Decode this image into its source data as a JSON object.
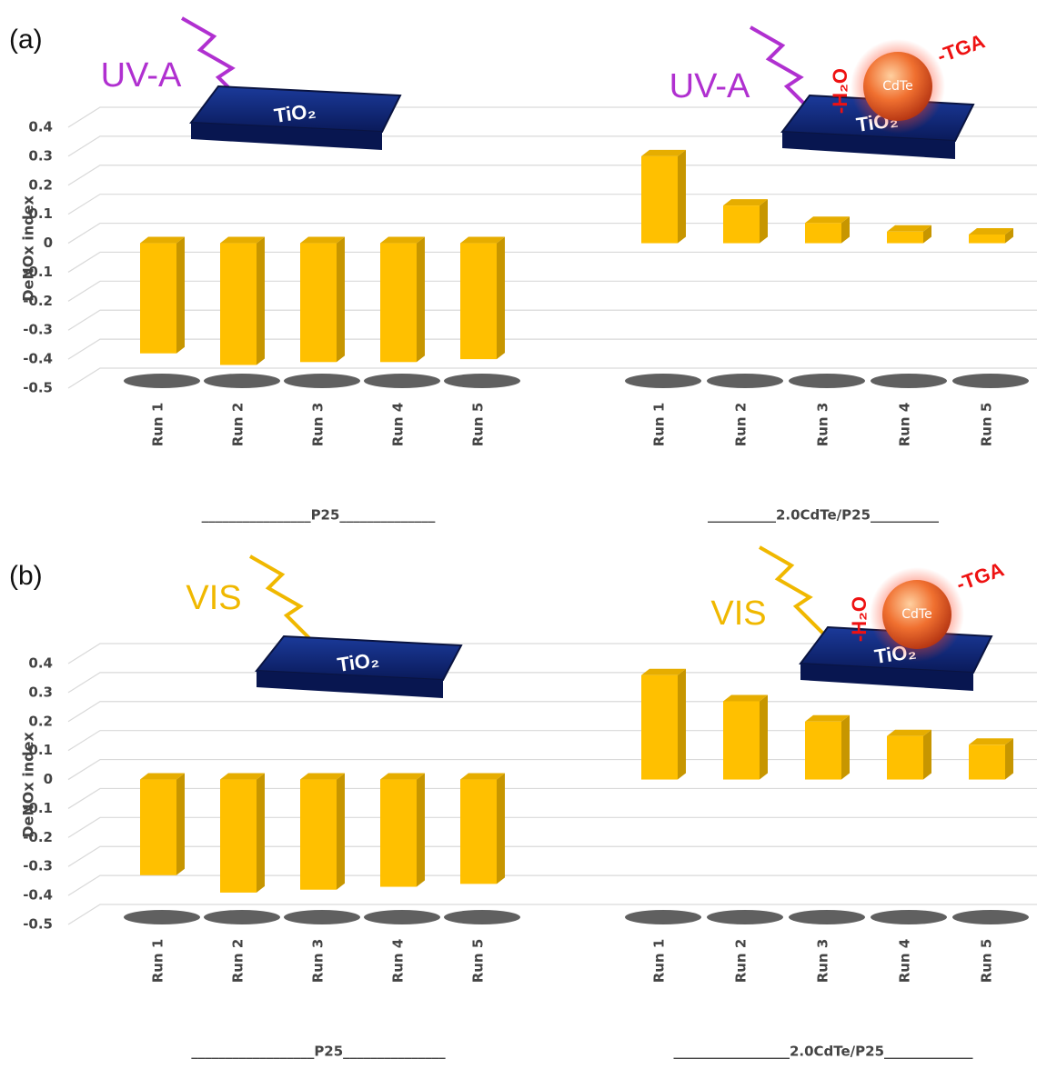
{
  "chart_data": [
    {
      "type": "bar",
      "panel": "(a)",
      "y_label": "DeNOx index",
      "ylim": [
        -0.5,
        0.4
      ],
      "yticks": [
        -0.5,
        -0.4,
        -0.3,
        -0.2,
        -0.1,
        0,
        0.1,
        0.2,
        0.3,
        0.4
      ],
      "grid": true,
      "color": "#ffc000",
      "groups": [
        {
          "label": "________________P25______________",
          "categories": [
            "Run 1",
            "Run 2",
            "Run 3",
            "Run 4",
            "Run 5"
          ],
          "values": [
            -0.38,
            -0.42,
            -0.41,
            -0.41,
            -0.4
          ]
        },
        {
          "label": "__________2.0CdTe/P25__________",
          "categories": [
            "Run 1",
            "Run 2",
            "Run 3",
            "Run 4",
            "Run 5"
          ],
          "values": [
            0.3,
            0.13,
            0.07,
            0.04,
            0.03
          ]
        }
      ],
      "annotations": {
        "light": "UV-A",
        "light_color": "#b030d0",
        "support": "TiO₂",
        "particle": "CdTe",
        "ligand_water": "-H₂O",
        "ligand_tga": "-TGA"
      }
    },
    {
      "type": "bar",
      "panel": "(b)",
      "y_label": "DeNOx index",
      "ylim": [
        -0.5,
        0.4
      ],
      "yticks": [
        -0.5,
        -0.4,
        -0.3,
        -0.2,
        -0.1,
        0,
        0.1,
        0.2,
        0.3,
        0.4
      ],
      "grid": true,
      "color": "#ffc000",
      "groups": [
        {
          "label": "__________________P25_______________",
          "categories": [
            "Run 1",
            "Run 2",
            "Run 3",
            "Run 4",
            "Run 5"
          ],
          "values": [
            -0.33,
            -0.39,
            -0.38,
            -0.37,
            -0.36
          ]
        },
        {
          "label": "_________________2.0CdTe/P25_____________",
          "categories": [
            "Run 1",
            "Run 2",
            "Run 3",
            "Run 4",
            "Run 5"
          ],
          "values": [
            0.36,
            0.27,
            0.2,
            0.15,
            0.12
          ]
        }
      ],
      "annotations": {
        "light": "VIS",
        "light_color": "#f0b800",
        "support": "TiO₂",
        "particle": "CdTe",
        "ligand_water": "-H₂O",
        "ligand_tga": "-TGA"
      }
    }
  ]
}
